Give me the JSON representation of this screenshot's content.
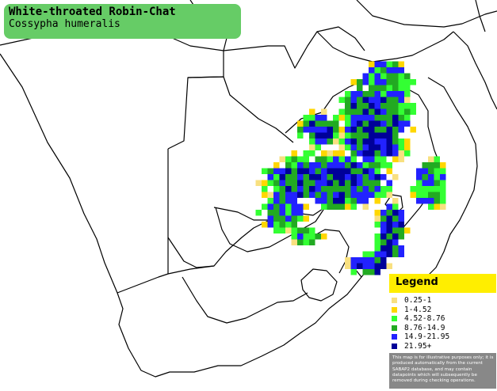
{
  "title": {
    "common_name": "White-throated Robin-Chat",
    "scientific_name": "Cossypha humeralis"
  },
  "legend": {
    "title": "Legend",
    "items": [
      {
        "label": "0.25-1",
        "color": "#f8e080"
      },
      {
        "label": "1-4.52",
        "color": "#ffd700"
      },
      {
        "label": "4.52-8.76",
        "color": "#33ff33"
      },
      {
        "label": "8.76-14.9",
        "color": "#22aa22"
      },
      {
        "label": "14.9-21.95",
        "color": "#2222ff"
      },
      {
        "label": "21.95+",
        "color": "#000099"
      }
    ],
    "disclaimer": "This map is for illustrative purposes only; it is produced automatically from the current SABAP2 database, and may contain datapoints which will subsequently be removed during checking operations."
  },
  "colors": {
    "title_box": "#66cc66",
    "legend_header": "#ffee00",
    "disclaimer_bg": "#888888",
    "border_lines": "#000000"
  }
}
